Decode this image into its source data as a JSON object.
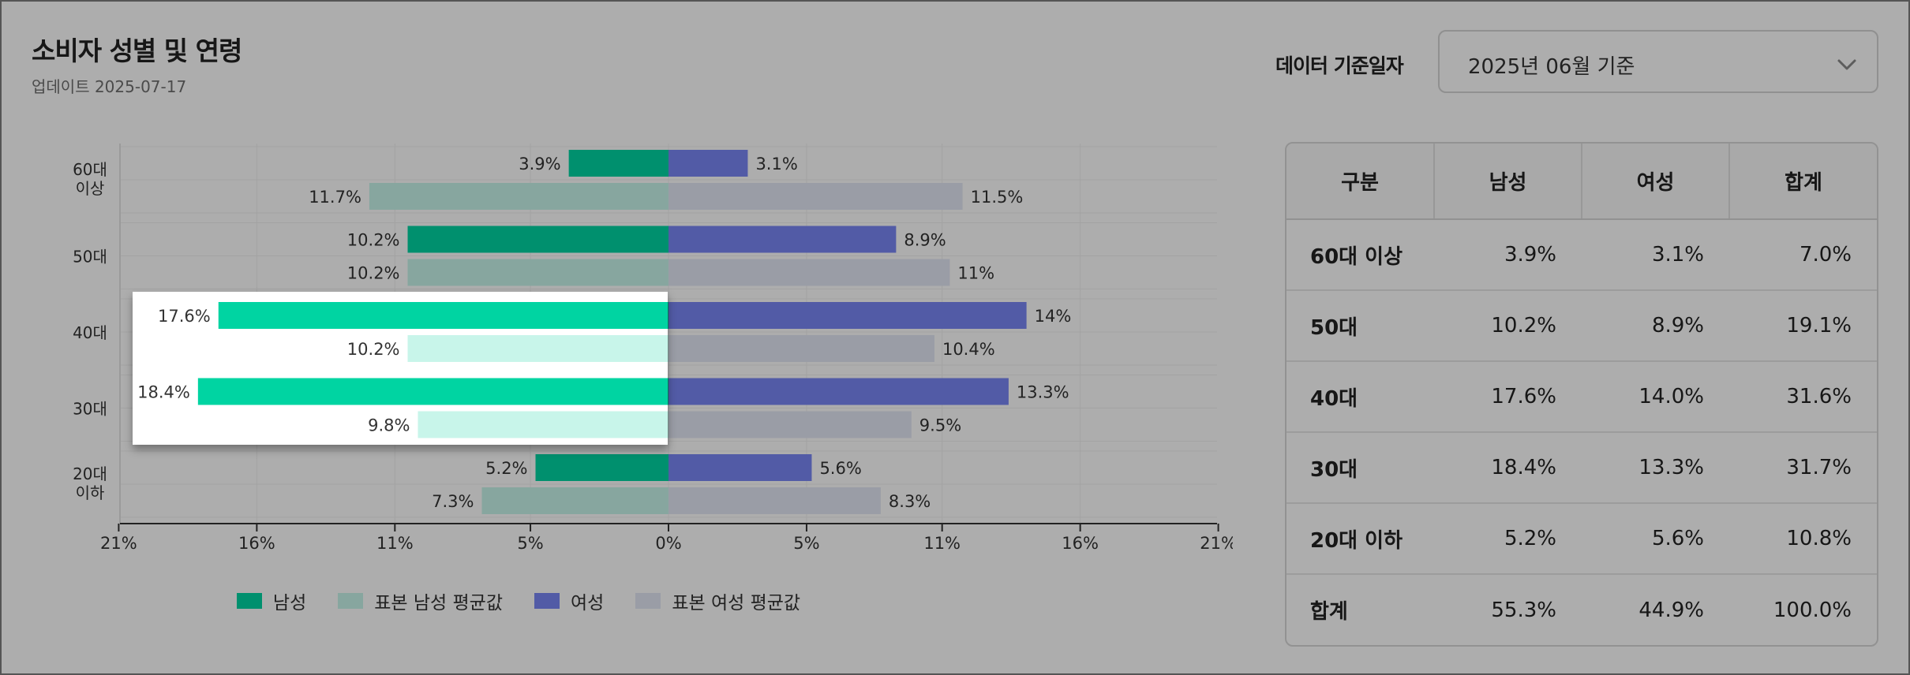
{
  "header": {
    "title": "소비자 성별 및 연령",
    "subtitle": "업데이트 2025-07-17",
    "date_label": "데이터 기준일자",
    "date_value": "2025년 06월 기준"
  },
  "colors": {
    "male": "#00d4a2",
    "male_avg": "#c8f5ea",
    "female": "#7986f5",
    "female_avg": "#e4e8f5"
  },
  "chart_data": {
    "type": "bar",
    "orientation": "horizontal",
    "categories": [
      "60대 이상",
      "50대",
      "40대",
      "30대",
      "20대 이하"
    ],
    "category_tick_lines": [
      [
        "60대",
        "이상"
      ],
      [
        "50대"
      ],
      [
        "40대"
      ],
      [
        "30대"
      ],
      [
        "20대",
        "이하"
      ]
    ],
    "series": [
      {
        "name": "남성",
        "values": [
          3.9,
          10.2,
          17.6,
          18.4,
          5.2
        ],
        "labels": [
          "3.9%",
          "10.2%",
          "17.6%",
          "18.4%",
          "5.2%"
        ]
      },
      {
        "name": "표본 남성 평균값",
        "values": [
          11.7,
          10.2,
          10.2,
          9.8,
          7.3
        ],
        "labels": [
          "11.7%",
          "10.2%",
          "10.2%",
          "9.8%",
          "7.3%"
        ]
      },
      {
        "name": "여성",
        "values": [
          3.1,
          8.9,
          14,
          13.3,
          5.6
        ],
        "labels": [
          "3.1%",
          "8.9%",
          "14%",
          "13.3%",
          "5.6%"
        ]
      },
      {
        "name": "표본 여성 평균값",
        "values": [
          11.5,
          11,
          10.4,
          9.5,
          8.3
        ],
        "labels": [
          "11.5%",
          "11%",
          "10.4%",
          "9.5%",
          "8.3%"
        ]
      }
    ],
    "x_ticks": [
      -21.5,
      -16.1,
      -10.7,
      -5.4,
      0,
      5.4,
      10.7,
      16.1,
      21.5
    ],
    "x_tick_labels": [
      "21%",
      "16%",
      "11%",
      "5%",
      "0%",
      "5%",
      "11%",
      "16%",
      "21%"
    ],
    "xlim": [
      -21.5,
      21.5
    ],
    "grid": true,
    "legend": "bottom",
    "highlighted_categories": [
      "40대",
      "30대"
    ]
  },
  "table": {
    "headers": [
      "구분",
      "남성",
      "여성",
      "합계"
    ],
    "rows": [
      [
        "60대 이상",
        "3.9%",
        "3.1%",
        "7.0%"
      ],
      [
        "50대",
        "10.2%",
        "8.9%",
        "19.1%"
      ],
      [
        "40대",
        "17.6%",
        "14.0%",
        "31.6%"
      ],
      [
        "30대",
        "18.4%",
        "13.3%",
        "31.7%"
      ],
      [
        "20대 이하",
        "5.2%",
        "5.6%",
        "10.8%"
      ],
      [
        "합계",
        "55.3%",
        "44.9%",
        "100.0%"
      ]
    ]
  }
}
